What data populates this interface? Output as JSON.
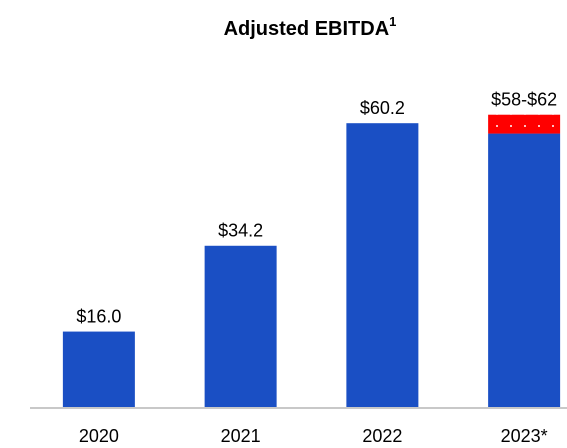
{
  "chart_data": {
    "type": "bar",
    "title": "Adjusted EBITDA",
    "title_superscript": "1",
    "categories": [
      "2020",
      "2021",
      "2022",
      "2023*"
    ],
    "series": [
      {
        "color": "#1a4fc4",
        "values": [
          16.0,
          34.2,
          60.2,
          58
        ],
        "value_labels": [
          "$16.0",
          "$34.2",
          "$60.2",
          "$58-$62"
        ]
      },
      {
        "color": "#ff0000",
        "values": [
          null,
          null,
          null,
          4
        ]
      }
    ],
    "stacked": true,
    "ylim": [
      0,
      70
    ]
  }
}
